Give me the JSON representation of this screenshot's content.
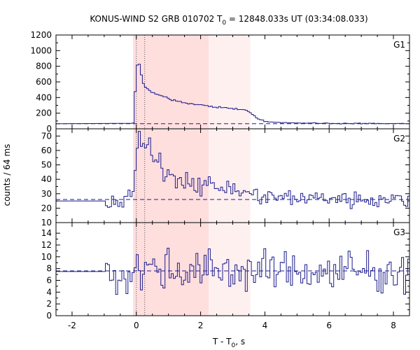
{
  "chart_data": {
    "type": "line",
    "title": "KONUS-WIND S2 GRB 010702 T0 = 12848.033s UT (03:34:08.033)",
    "title_parts": {
      "pre": "KONUS-WIND S2 GRB 010702 T",
      "sub": "0",
      "post": " = 12848.033s UT (03:34:08.033)"
    },
    "xlabel": "T - T0, s",
    "xlabel_parts": {
      "pre": "T - T",
      "sub": "0",
      "post": ", s"
    },
    "ylabel": "counts / 64 ms",
    "xlim": [
      -2.5,
      8.5
    ],
    "xticks": [
      -2,
      0,
      2,
      4,
      6,
      8
    ],
    "x_tick_labels": [
      "-2",
      "0",
      "2",
      "4",
      "6",
      "8"
    ],
    "x_minor_step": 0.5,
    "colors": {
      "line": "#1b1b8c",
      "band_inner": "#ffdede",
      "band_outer": "#fff0f0",
      "marker_line": "#555555",
      "frame": "#000000"
    },
    "shaded_intervals": [
      {
        "from": -0.1,
        "to": 2.25,
        "shade": "band_inner"
      },
      {
        "from": 2.25,
        "to": 3.55,
        "shade": "band_outer"
      }
    ],
    "vertical_markers": [
      0.0,
      0.26
    ],
    "bin_width": 0.064,
    "panels": [
      {
        "label": "G1",
        "ylim": [
          0,
          1200
        ],
        "yticks": [
          0,
          200,
          400,
          600,
          800,
          1000,
          1200
        ],
        "ytick_labels": [
          "0",
          "200",
          "400",
          "600",
          "800",
          "1000",
          "1200"
        ],
        "background": 65,
        "series": [
          {
            "name": "G1",
            "x": [
              -2.5,
              -0.1,
              0.0,
              0.06,
              0.12,
              0.2,
              0.3,
              0.5,
              0.8,
              1.2,
              1.6,
              2.0,
              2.5,
              3.0,
              3.5,
              3.7,
              4.0,
              4.5,
              5.0,
              6.0,
              7.0,
              8.0,
              8.5
            ],
            "y": [
              65,
              70,
              720,
              930,
              770,
              610,
              520,
              460,
              420,
              360,
              320,
              300,
              280,
              260,
              230,
              150,
              95,
              80,
              75,
              70,
              68,
              66,
              65
            ]
          }
        ]
      },
      {
        "label": "G2",
        "ylim": [
          10,
          75
        ],
        "yticks": [
          10,
          20,
          30,
          40,
          50,
          60,
          70
        ],
        "ytick_labels": [
          "10",
          "20",
          "30",
          "40",
          "50",
          "60",
          "70"
        ],
        "background": 26,
        "series": [
          {
            "name": "G2",
            "x": [
              -2.5,
              -1.0,
              -0.5,
              -0.2,
              -0.1,
              0.0,
              0.1,
              0.2,
              0.35,
              0.5,
              0.8,
              1.2,
              1.6,
              2.0,
              2.5,
              3.0,
              3.5,
              4.0,
              5.0,
              6.0,
              7.0,
              8.0,
              8.5
            ],
            "y": [
              25,
              25,
              24,
              27,
              30,
              60,
              68,
              62,
              64,
              55,
              47,
              42,
              39,
              37,
              35,
              33,
              30,
              28,
              27,
              27,
              26,
              26,
              26
            ]
          }
        ]
      },
      {
        "label": "G3",
        "ylim": [
          0,
          15.8
        ],
        "yticks": [
          0,
          2,
          4,
          6,
          8,
          10,
          12,
          14
        ],
        "ytick_labels": [
          "0",
          "2",
          "4",
          "6",
          "8",
          "10",
          "12",
          "14"
        ],
        "background": 7.6,
        "series": [
          {
            "name": "G3",
            "x": [
              -2.5,
              -1.0,
              -0.5,
              0.0,
              1.0,
              2.0,
              3.0,
              4.0,
              5.0,
              6.0,
              7.0,
              8.0,
              8.5
            ],
            "y": [
              7.5,
              7.5,
              6.5,
              8.0,
              7.8,
              7.6,
              7.8,
              7.5,
              7.6,
              7.4,
              7.6,
              7.5,
              7.5
            ]
          }
        ]
      }
    ]
  }
}
